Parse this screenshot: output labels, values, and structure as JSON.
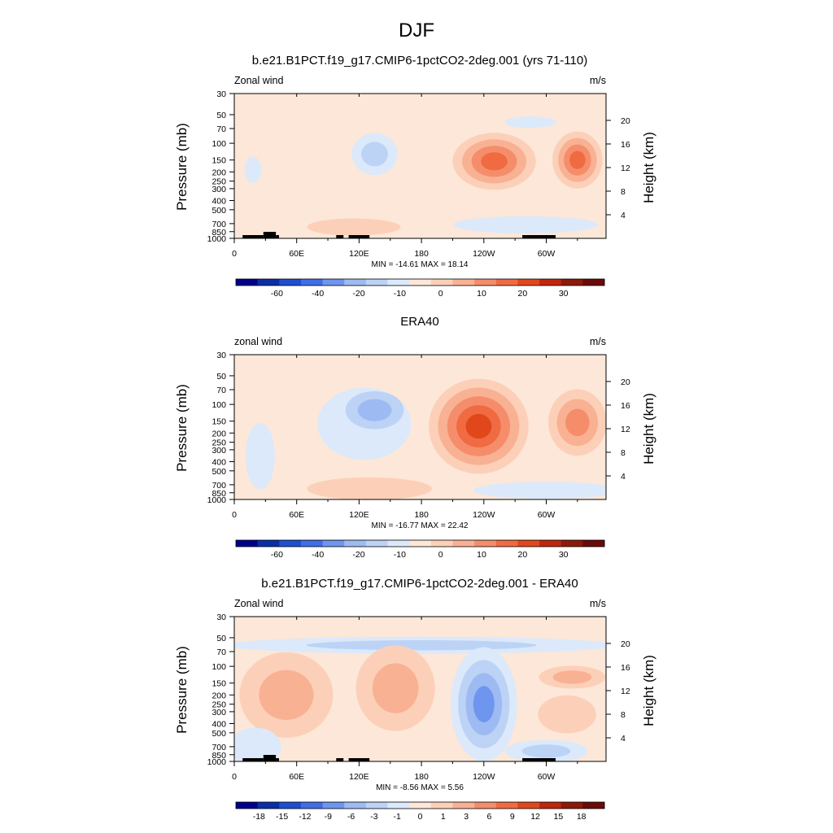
{
  "figure": {
    "title": "DJF"
  },
  "colors": {
    "bg_neutral": "#fde7d8",
    "cool": [
      "#dbe9fb",
      "#bcd3f6",
      "#9ebaf2",
      "#6e96ee",
      "#4d79f0"
    ],
    "warm": [
      "#fcd0b8",
      "#f9b193",
      "#f58d6b",
      "#f06a42",
      "#e0481c",
      "#cc3410"
    ],
    "land": "#000000"
  },
  "chart_data": [
    {
      "type": "contour",
      "title": "b.e21.B1PCT.f19_g17.CMIP6-1pctCO2-2deg.001 (yrs 71-110)",
      "left_label": "Zonal wind",
      "right_label": "m/s",
      "ylabel": "Pressure (mb)",
      "ylabel_right": "Height (km)",
      "x_ticks": [
        "0",
        "60E",
        "120E",
        "180",
        "120W",
        "60W"
      ],
      "x_tick_lon": [
        0,
        60,
        120,
        180,
        240,
        300
      ],
      "xlim": [
        0,
        357.5
      ],
      "y_ticks": [
        "30",
        "50",
        "70",
        "100",
        "150",
        "200",
        "250",
        "300",
        "400",
        "500",
        "700",
        "850",
        "1000"
      ],
      "ylim_mb": [
        1000,
        30
      ],
      "height_ticks": [
        "20",
        "16",
        "12",
        "8",
        "4"
      ],
      "height_km": [
        20,
        16,
        12,
        8,
        4
      ],
      "stats": "MIN = -14.61  MAX =  18.14",
      "colorbar_labels": [
        "-60",
        "-40",
        "-20",
        "-10",
        "0",
        "10",
        "20",
        "30"
      ],
      "colorbar_colors": [
        "#00008b",
        "#0a2ea6",
        "#1f4fd0",
        "#3f6ee6",
        "#6e96ee",
        "#9ebaf2",
        "#bcd3f6",
        "#dbe9fb",
        "#fde7d8",
        "#fcd0b8",
        "#f9b193",
        "#f58d6b",
        "#f06a42",
        "#e0481c",
        "#c0260e",
        "#8b1a0a",
        "#6b0a0a"
      ],
      "features": [
        {
          "lon": 135,
          "p": 130,
          "rlon": 22,
          "rlog": 0.22,
          "levels": [
            "#dbe9fb",
            "#bcd3f6"
          ]
        },
        {
          "lon": 250,
          "p": 155,
          "rlon": 40,
          "rlog": 0.3,
          "levels": [
            "#fcd0b8",
            "#f9b193",
            "#f58d6b",
            "#f06a42"
          ]
        },
        {
          "lon": 330,
          "p": 150,
          "rlon": 24,
          "rlog": 0.3,
          "levels": [
            "#fcd0b8",
            "#f9b193",
            "#f58d6b",
            "#f06a42"
          ]
        },
        {
          "lon": 18,
          "p": 190,
          "rlon": 8,
          "rlog": 0.14,
          "levels": [
            "#dbe9fb"
          ]
        },
        {
          "lon": 280,
          "p": 720,
          "rlon": 70,
          "rlog": 0.09,
          "levels": [
            "#dbe9fb"
          ]
        },
        {
          "lon": 115,
          "p": 760,
          "rlon": 45,
          "rlog": 0.09,
          "levels": [
            "#fcd0b8"
          ]
        },
        {
          "lon": 285,
          "p": 60,
          "rlon": 25,
          "rlog": 0.06,
          "levels": [
            "#dbe9fb"
          ]
        }
      ],
      "land": [
        [
          8,
          28
        ],
        [
          28,
          40
        ],
        [
          40,
          43
        ],
        [
          98,
          105
        ],
        [
          110,
          130
        ],
        [
          277,
          309
        ]
      ]
    },
    {
      "type": "contour",
      "title": "ERA40",
      "left_label": "zonal wind",
      "right_label": "m/s",
      "ylabel": "Pressure (mb)",
      "ylabel_right": "Height (km)",
      "x_ticks": [
        "0",
        "60E",
        "120E",
        "180",
        "120W",
        "60W"
      ],
      "x_tick_lon": [
        0,
        60,
        120,
        180,
        240,
        300
      ],
      "xlim": [
        0,
        357.5
      ],
      "y_ticks": [
        "30",
        "50",
        "70",
        "100",
        "150",
        "200",
        "250",
        "300",
        "400",
        "500",
        "700",
        "850",
        "1000"
      ],
      "ylim_mb": [
        1000,
        30
      ],
      "height_ticks": [
        "20",
        "16",
        "12",
        "8",
        "4"
      ],
      "height_km": [
        20,
        16,
        12,
        8,
        4
      ],
      "stats": "MIN = -16.77  MAX =  22.42",
      "colorbar_labels": [
        "-60",
        "-40",
        "-20",
        "-10",
        "0",
        "10",
        "20",
        "30"
      ],
      "colorbar_colors": [
        "#00008b",
        "#0a2ea6",
        "#1f4fd0",
        "#3f6ee6",
        "#6e96ee",
        "#9ebaf2",
        "#bcd3f6",
        "#dbe9fb",
        "#fde7d8",
        "#fcd0b8",
        "#f9b193",
        "#f58d6b",
        "#f06a42",
        "#e0481c",
        "#c0260e",
        "#8b1a0a",
        "#6b0a0a"
      ],
      "features": [
        {
          "lon": 125,
          "p": 160,
          "rlon": 45,
          "rlog": 0.38,
          "levels": [
            "#dbe9fb"
          ]
        },
        {
          "lon": 135,
          "p": 115,
          "rlon": 28,
          "rlog": 0.2,
          "levels": [
            "#bcd3f6",
            "#9ebaf2"
          ]
        },
        {
          "lon": 235,
          "p": 170,
          "rlon": 48,
          "rlog": 0.5,
          "levels": [
            "#fcd0b8",
            "#f9b193",
            "#f58d6b",
            "#f06a42",
            "#e0481c"
          ]
        },
        {
          "lon": 330,
          "p": 155,
          "rlon": 28,
          "rlog": 0.35,
          "levels": [
            "#fcd0b8",
            "#f9b193",
            "#f58d6b"
          ]
        },
        {
          "lon": 25,
          "p": 350,
          "rlon": 14,
          "rlog": 0.35,
          "levels": [
            "#dbe9fb"
          ]
        },
        {
          "lon": 130,
          "p": 770,
          "rlon": 60,
          "rlog": 0.12,
          "levels": [
            "#fcd0b8"
          ]
        },
        {
          "lon": 300,
          "p": 800,
          "rlon": 70,
          "rlog": 0.09,
          "levels": [
            "#dbe9fb"
          ]
        }
      ],
      "land": []
    },
    {
      "type": "contour",
      "title": "b.e21.B1PCT.f19_g17.CMIP6-1pctCO2-2deg.001 - ERA40",
      "left_label": "Zonal wind",
      "right_label": "m/s",
      "ylabel": "Pressure (mb)",
      "ylabel_right": "Height (km)",
      "x_ticks": [
        "0",
        "60E",
        "120E",
        "180",
        "120W",
        "60W"
      ],
      "x_tick_lon": [
        0,
        60,
        120,
        180,
        240,
        300
      ],
      "xlim": [
        0,
        357.5
      ],
      "y_ticks": [
        "30",
        "50",
        "70",
        "100",
        "150",
        "200",
        "250",
        "300",
        "400",
        "500",
        "700",
        "850",
        "1000"
      ],
      "ylim_mb": [
        1000,
        30
      ],
      "height_ticks": [
        "20",
        "16",
        "12",
        "8",
        "4"
      ],
      "height_km": [
        20,
        16,
        12,
        8,
        4
      ],
      "stats": "MIN = -8.56  MAX =  5.56",
      "colorbar_labels": [
        "-18",
        "-15",
        "-12",
        "-9",
        "-6",
        "-3",
        "-1",
        "0",
        "1",
        "3",
        "6",
        "9",
        "12",
        "15",
        "18"
      ],
      "colorbar_colors": [
        "#00008b",
        "#0a2ea6",
        "#1f4fd0",
        "#3f6ee6",
        "#6e96ee",
        "#9ebaf2",
        "#bcd3f6",
        "#dbe9fb",
        "#fde7d8",
        "#fcd0b8",
        "#f9b193",
        "#f58d6b",
        "#f06a42",
        "#e0481c",
        "#c0260e",
        "#8b1a0a",
        "#6b0a0a"
      ],
      "features": [
        {
          "lon": 180,
          "p": 60,
          "rlon": 190,
          "rlog": 0.09,
          "levels": [
            "#dbe9fb",
            "#bcd3f6"
          ]
        },
        {
          "lon": 50,
          "p": 200,
          "rlon": 45,
          "rlog": 0.45,
          "levels": [
            "#fcd0b8",
            "#f9b193"
          ]
        },
        {
          "lon": 155,
          "p": 170,
          "rlon": 38,
          "rlog": 0.45,
          "levels": [
            "#fcd0b8",
            "#f9b193"
          ]
        },
        {
          "lon": 240,
          "p": 250,
          "rlon": 32,
          "rlog": 0.6,
          "levels": [
            "#dbe9fb",
            "#bcd3f6",
            "#9ebaf2",
            "#6e96ee"
          ]
        },
        {
          "lon": 325,
          "p": 130,
          "rlon": 32,
          "rlog": 0.12,
          "levels": [
            "#fcd0b8",
            "#f9b193"
          ]
        },
        {
          "lon": 320,
          "p": 320,
          "rlon": 28,
          "rlog": 0.2,
          "levels": [
            "#fcd0b8"
          ]
        },
        {
          "lon": 300,
          "p": 780,
          "rlon": 40,
          "rlog": 0.12,
          "levels": [
            "#dbe9fb",
            "#bcd3f6"
          ]
        },
        {
          "lon": 20,
          "p": 700,
          "rlon": 25,
          "rlog": 0.2,
          "levels": [
            "#dbe9fb"
          ]
        }
      ],
      "land": [
        [
          8,
          28
        ],
        [
          28,
          40
        ],
        [
          40,
          43
        ],
        [
          98,
          105
        ],
        [
          110,
          130
        ],
        [
          277,
          309
        ]
      ]
    }
  ]
}
